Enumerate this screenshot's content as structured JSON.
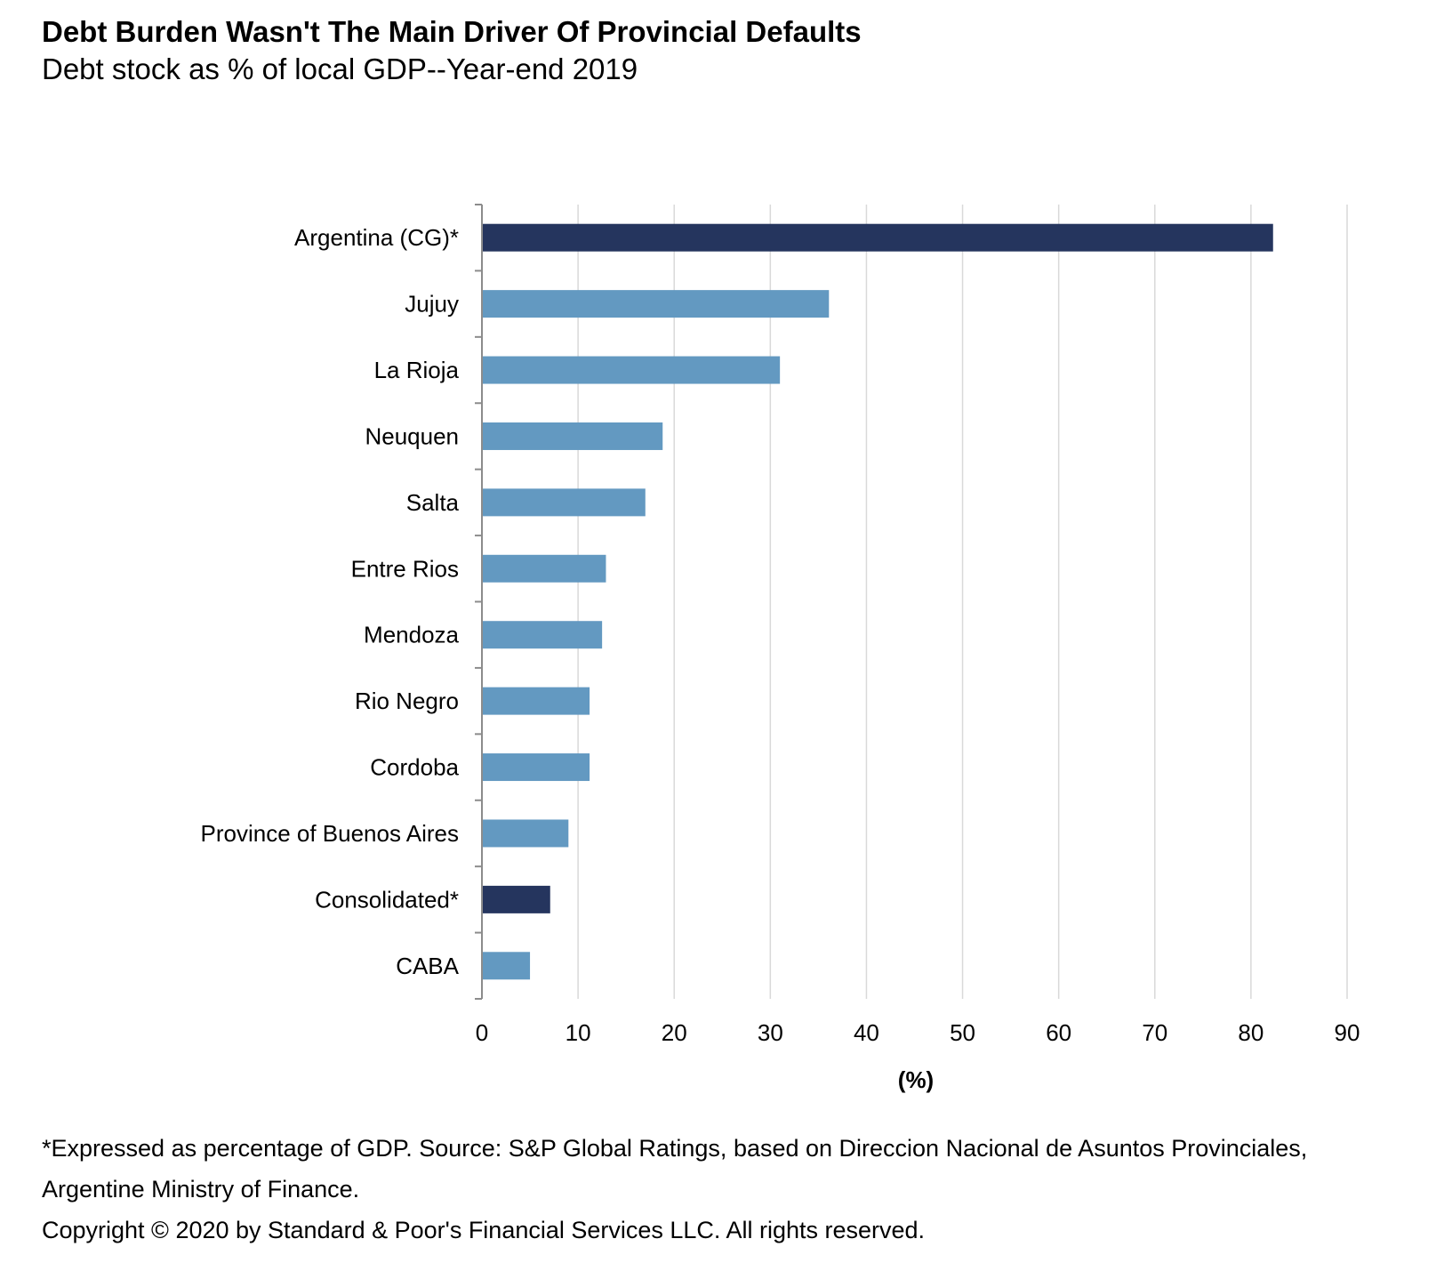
{
  "header": {
    "title": "Debt Burden Wasn't The Main Driver Of Provincial Defaults",
    "subtitle": "Debt stock as % of local GDP--Year-end 2019"
  },
  "chart_data": {
    "type": "bar",
    "orientation": "horizontal",
    "title": "Debt Burden Wasn't The Main Driver Of Provincial Defaults",
    "subtitle": "Debt stock as % of local GDP--Year-end 2019",
    "categories": [
      "Argentina (CG)*",
      "Jujuy",
      "La Rioja",
      "Neuquen",
      "Salta",
      "Entre Rios",
      "Mendoza",
      "Rio Negro",
      "Cordoba",
      "Province of Buenos Aires",
      "Consolidated*",
      "CABA"
    ],
    "values": [
      82.3,
      36.1,
      31.0,
      18.8,
      17.0,
      12.9,
      12.5,
      11.2,
      11.2,
      9.0,
      7.1,
      5.0
    ],
    "highlighted": [
      true,
      false,
      false,
      false,
      false,
      false,
      false,
      false,
      false,
      false,
      true,
      false
    ],
    "colors": {
      "highlight": "#25355e",
      "default": "#6399c1",
      "gridline": "#d9d9d9",
      "axis": "#8c8c8c"
    },
    "xlabel": "(%)",
    "ylabel": "",
    "xlim": [
      0,
      90
    ],
    "xticks": [
      0,
      10,
      20,
      30,
      40,
      50,
      60,
      70,
      80,
      90
    ],
    "grid": true
  },
  "footnote": {
    "source": "*Expressed as percentage of GDP. Source: S&P Global Ratings, based on Direccion Nacional de Asuntos Provinciales, Argentine Ministry of Finance.",
    "copyright": "Copyright © 2020 by Standard & Poor's Financial Services LLC. All rights reserved."
  }
}
